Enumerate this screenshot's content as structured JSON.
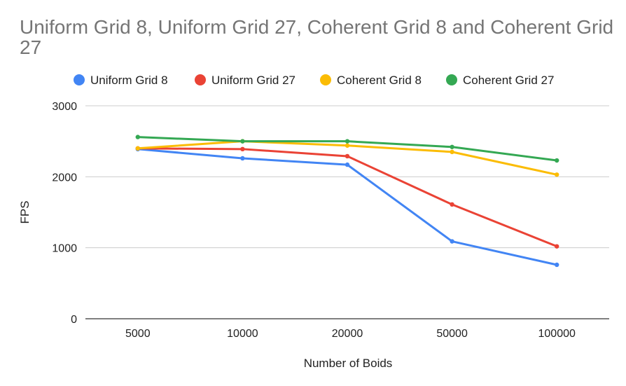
{
  "chart_data": {
    "type": "line",
    "title": "Uniform Grid 8, Uniform Grid 27, Coherent Grid 8 and Coherent Grid 27",
    "xlabel": "Number of Boids",
    "ylabel": "FPS",
    "categories": [
      "5000",
      "10000",
      "20000",
      "50000",
      "100000"
    ],
    "yticks": [
      "0",
      "1000",
      "2000",
      "3000"
    ],
    "ylim": [
      0,
      3000
    ],
    "grid": true,
    "legend": "top",
    "series": [
      {
        "name": "Uniform Grid 8",
        "color": "#4285f4",
        "values": [
          2390,
          2260,
          2170,
          1090,
          760
        ]
      },
      {
        "name": "Uniform Grid 27",
        "color": "#ea4335",
        "values": [
          2400,
          2390,
          2290,
          1610,
          1020
        ]
      },
      {
        "name": "Coherent Grid 8",
        "color": "#fbbc04",
        "values": [
          2400,
          2500,
          2440,
          2350,
          2030
        ]
      },
      {
        "name": "Coherent Grid 27",
        "color": "#34a853",
        "values": [
          2560,
          2500,
          2500,
          2420,
          2230
        ]
      }
    ]
  }
}
